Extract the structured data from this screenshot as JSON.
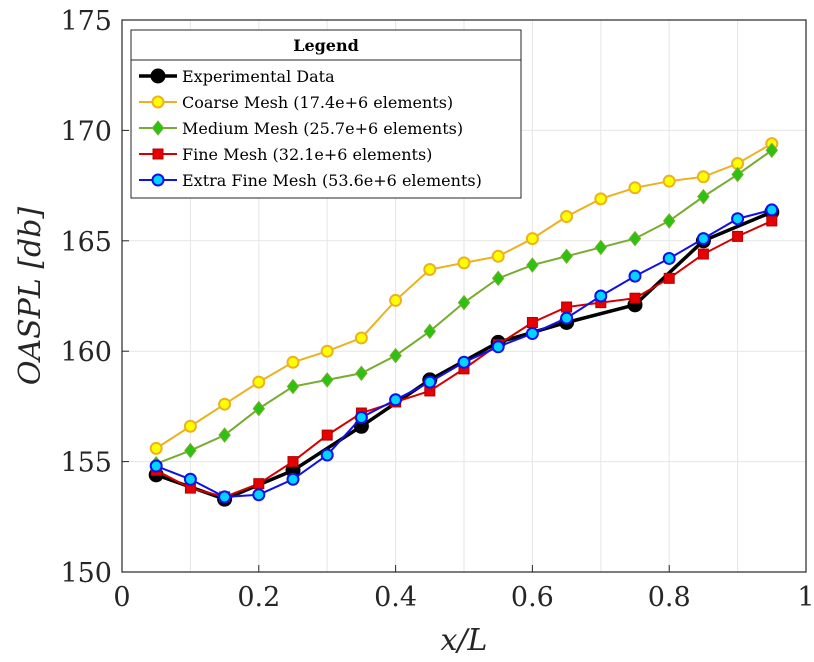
{
  "chart_data": {
    "type": "line",
    "xlabel": "x/L",
    "ylabel": "OASPL [db]",
    "xlim": [
      0,
      1
    ],
    "ylim": [
      150,
      175
    ],
    "xticks": [
      "0",
      "0.2",
      "0.4",
      "0.6",
      "0.8",
      "1"
    ],
    "yticks": [
      "150",
      "155",
      "160",
      "165",
      "170",
      "175"
    ],
    "grid": true,
    "legend": {
      "title": "Legend",
      "placement": "top-left"
    },
    "series": [
      {
        "name": "Experimental Data",
        "color": "#000000",
        "marker": "circle",
        "x": [
          0.05,
          0.15,
          0.25,
          0.35,
          0.45,
          0.55,
          0.65,
          0.75,
          0.85,
          0.95
        ],
        "y": [
          154.4,
          153.3,
          154.6,
          156.6,
          158.7,
          160.4,
          161.3,
          162.1,
          165.0,
          166.3
        ]
      },
      {
        "name": "Coarse Mesh (17.4e+6 elements)",
        "color": "#EDB120",
        "marker": "circle",
        "x": [
          0.05,
          0.1,
          0.15,
          0.2,
          0.25,
          0.3,
          0.35,
          0.4,
          0.45,
          0.5,
          0.55,
          0.6,
          0.65,
          0.7,
          0.75,
          0.8,
          0.85,
          0.9,
          0.95
        ],
        "y": [
          155.6,
          156.6,
          157.6,
          158.6,
          159.5,
          160.0,
          160.6,
          162.3,
          163.7,
          164.0,
          164.3,
          165.1,
          166.1,
          166.9,
          167.4,
          167.7,
          167.9,
          168.5,
          169.4
        ]
      },
      {
        "name": "Medium Mesh (25.7e+6 elements)",
        "color": "#77AC30",
        "marker": "diamond",
        "x": [
          0.05,
          0.1,
          0.15,
          0.2,
          0.25,
          0.3,
          0.35,
          0.4,
          0.45,
          0.5,
          0.55,
          0.6,
          0.65,
          0.7,
          0.75,
          0.8,
          0.85,
          0.9,
          0.95
        ],
        "y": [
          154.9,
          155.5,
          156.2,
          157.4,
          158.4,
          158.7,
          159.0,
          159.8,
          160.9,
          162.2,
          163.3,
          163.9,
          164.3,
          164.7,
          165.1,
          165.9,
          167.0,
          168.0,
          169.1
        ]
      },
      {
        "name": "Fine Mesh (32.1e+6 elements)",
        "color": "#D40000",
        "marker": "square",
        "x": [
          0.05,
          0.1,
          0.15,
          0.2,
          0.25,
          0.3,
          0.35,
          0.4,
          0.45,
          0.5,
          0.55,
          0.6,
          0.65,
          0.7,
          0.75,
          0.8,
          0.85,
          0.9,
          0.95
        ],
        "y": [
          154.6,
          153.8,
          153.4,
          154.0,
          155.0,
          156.2,
          157.2,
          157.7,
          158.2,
          159.2,
          160.3,
          161.3,
          162.0,
          162.2,
          162.4,
          163.3,
          164.4,
          165.2,
          165.9
        ]
      },
      {
        "name": "Extra Fine Mesh (53.6e+6 elements)",
        "color": "#1010E8",
        "marker": "circle",
        "x": [
          0.05,
          0.1,
          0.15,
          0.2,
          0.25,
          0.3,
          0.35,
          0.4,
          0.45,
          0.5,
          0.55,
          0.6,
          0.65,
          0.7,
          0.75,
          0.8,
          0.85,
          0.9,
          0.95
        ],
        "y": [
          154.8,
          154.2,
          153.4,
          153.5,
          154.2,
          155.3,
          157.0,
          157.8,
          158.6,
          159.5,
          160.2,
          160.8,
          161.5,
          162.5,
          163.4,
          164.2,
          165.1,
          166.0,
          166.4
        ]
      }
    ]
  }
}
